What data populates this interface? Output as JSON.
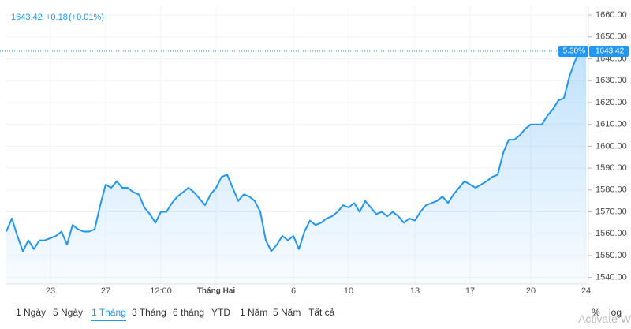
{
  "chart_data": {
    "type": "area",
    "legend_text": {
      "price": "1643.42",
      "change": "+0.18",
      "change_percent": "(+0.01%)"
    },
    "categories": [
      null,
      null,
      null,
      null,
      null,
      null,
      null,
      null,
      "23",
      null,
      null,
      null,
      null,
      null,
      null,
      null,
      null,
      null,
      "27",
      null,
      null,
      null,
      null,
      null,
      null,
      null,
      null,
      null,
      "12:00",
      null,
      null,
      null,
      null,
      null,
      null,
      null,
      null,
      null,
      "Tháng Hai",
      null,
      null,
      null,
      null,
      null,
      null,
      null,
      null,
      null,
      null,
      null,
      null,
      null,
      "6",
      null,
      null,
      null,
      null,
      null,
      null,
      null,
      null,
      null,
      "10",
      null,
      null,
      null,
      null,
      null,
      null,
      null,
      null,
      null,
      null,
      null,
      "13",
      null,
      null,
      null,
      null,
      null,
      null,
      null,
      null,
      null,
      "17",
      null,
      null,
      null,
      null,
      null,
      null,
      null,
      null,
      null,
      null,
      "20",
      null,
      null,
      null,
      null,
      null,
      null,
      null,
      null,
      null,
      "24"
    ],
    "values": [
      1561,
      1567,
      1559,
      1552,
      1557,
      1553,
      1557,
      1557,
      1558,
      1559,
      1561,
      1555,
      1564,
      1562,
      1561,
      1561,
      1562,
      1573,
      1582.5,
      1581,
      1584,
      1581,
      1581,
      1579,
      1578,
      1572,
      1569,
      1565,
      1570,
      1570,
      1574,
      1577,
      1579,
      1581,
      1579,
      1576,
      1573,
      1578,
      1581,
      1586,
      1587,
      1581,
      1575,
      1578,
      1577,
      1575,
      1570,
      1557,
      1552,
      1555,
      1559,
      1557,
      1559,
      1553,
      1561,
      1566,
      1564,
      1565,
      1567,
      1568,
      1570,
      1573,
      1572,
      1574,
      1570,
      1575,
      1572,
      1569,
      1570,
      1568,
      1570,
      1568,
      1565,
      1567,
      1566,
      1570,
      1573,
      1574,
      1575,
      1577,
      1574,
      1578,
      1581,
      1584,
      1582.5,
      1581,
      1582.5,
      1584,
      1586,
      1587,
      1597,
      1603,
      1603,
      1605,
      1608,
      1610,
      1610,
      1610,
      1614,
      1617,
      1621,
      1622,
      1632,
      1639,
      1644,
      1643.42
    ],
    "color": "#2196f3",
    "ylim": [
      1537,
      1664
    ],
    "yticks": [
      {
        "value": 1540,
        "label": "1540.00"
      },
      {
        "value": 1550,
        "label": "1550.00"
      },
      {
        "value": 1560,
        "label": "1560.00"
      },
      {
        "value": 1570,
        "label": "1570.00"
      },
      {
        "value": 1580,
        "label": "1580.00"
      },
      {
        "value": 1590,
        "label": "1590.00"
      },
      {
        "value": 1600,
        "label": "1600.00"
      },
      {
        "value": 1610,
        "label": "1610.00"
      },
      {
        "value": 1620,
        "label": "1620.00"
      },
      {
        "value": 1630,
        "label": "1630.00"
      },
      {
        "value": 1640,
        "label": "1640.00"
      },
      {
        "value": 1650,
        "label": "1650.00"
      },
      {
        "value": 1660,
        "label": "1660.00"
      }
    ],
    "grid": true,
    "price_line": {
      "value": 1643.42,
      "percent_label": "5.30%"
    }
  },
  "toolbar": {
    "ranges": [
      "1 Ngày",
      "5 Ngày",
      "1 Tháng",
      "3 Tháng",
      "6 tháng",
      "YTD",
      "1 Năm",
      "5 Năm",
      "Tất cả"
    ],
    "active": "1 Tháng",
    "percent": "%",
    "log": "log"
  },
  "watermark": "Activate W"
}
